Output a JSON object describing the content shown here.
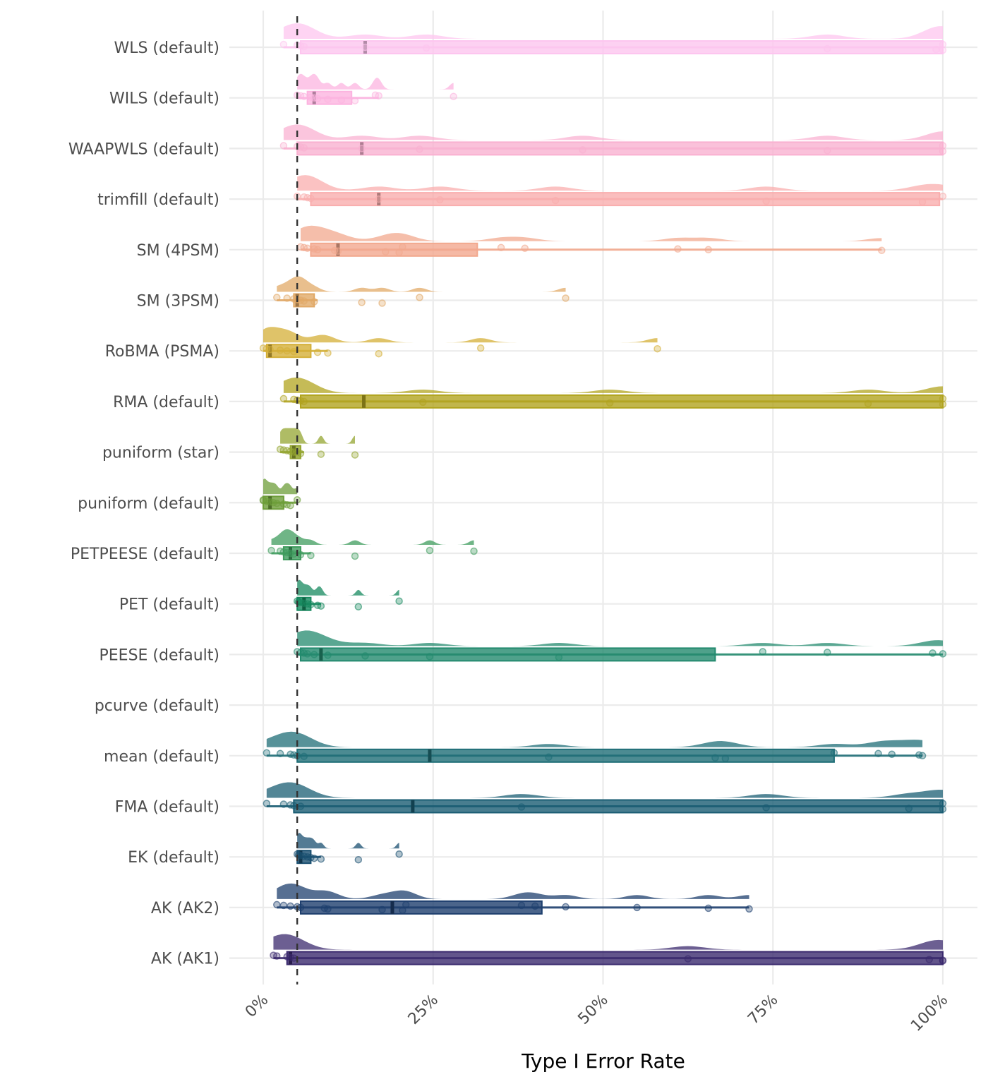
{
  "chart_data": {
    "type": "raincloud",
    "title": "",
    "xlabel": "Type I Error Rate",
    "ylabel": "",
    "xlim": [
      0,
      1
    ],
    "x_ticks": [
      0,
      0.25,
      0.5,
      0.75,
      1
    ],
    "x_tick_labels": [
      "0%",
      "25%",
      "50%",
      "75%",
      "100%"
    ],
    "x_tick_rotation_deg": 45,
    "reference_line": {
      "x": 0.05,
      "style": "dashed",
      "color": "#333333"
    },
    "grid": true,
    "legend": "none",
    "series": [
      {
        "name": "WLS (default)",
        "color": "#FDC5EF",
        "box": {
          "q1": 0.055,
          "median": 0.15,
          "q3": 1.0,
          "whisker_low": 0.03,
          "whisker_high": 1.0
        },
        "points": [
          0.03,
          0.05,
          0.055,
          0.06,
          0.15,
          0.24,
          0.83,
          0.99,
          1.0,
          1.0
        ]
      },
      {
        "name": "WILS (default)",
        "color": "#FCB4E0",
        "box": {
          "q1": 0.065,
          "median": 0.075,
          "q3": 0.13,
          "whisker_low": 0.05,
          "whisker_high": 0.17
        },
        "points": [
          0.05,
          0.055,
          0.06,
          0.07,
          0.075,
          0.08,
          0.095,
          0.115,
          0.135,
          0.165,
          0.17,
          0.28
        ]
      },
      {
        "name": "WAAPWLS (default)",
        "color": "#F9B1D1",
        "box": {
          "q1": 0.05,
          "median": 0.145,
          "q3": 1.0,
          "whisker_low": 0.03,
          "whisker_high": 1.0
        },
        "points": [
          0.03,
          0.05,
          0.055,
          0.06,
          0.145,
          0.23,
          0.47,
          0.83,
          1.0,
          1.0
        ]
      },
      {
        "name": "trimfill (default)",
        "color": "#F9AEAE",
        "box": {
          "q1": 0.07,
          "median": 0.17,
          "q3": 0.995,
          "whisker_low": 0.05,
          "whisker_high": 1.0
        },
        "points": [
          0.05,
          0.06,
          0.065,
          0.07,
          0.17,
          0.26,
          0.43,
          0.74,
          0.97,
          1.0
        ]
      },
      {
        "name": "SM (4PSM)",
        "color": "#F2A88E",
        "box": {
          "q1": 0.07,
          "median": 0.11,
          "q3": 0.315,
          "whisker_low": 0.055,
          "whisker_high": 0.91
        },
        "points": [
          0.055,
          0.06,
          0.065,
          0.075,
          0.08,
          0.105,
          0.11,
          0.18,
          0.2,
          0.205,
          0.35,
          0.385,
          0.61,
          0.655,
          0.91
        ]
      },
      {
        "name": "SM (3PSM)",
        "color": "#E1A967",
        "box": {
          "q1": 0.045,
          "median": 0.05,
          "q3": 0.075,
          "whisker_low": 0.02,
          "whisker_high": 0.08
        },
        "points": [
          0.02,
          0.035,
          0.045,
          0.05,
          0.055,
          0.06,
          0.075,
          0.145,
          0.175,
          0.23,
          0.445
        ]
      },
      {
        "name": "RoBMA (PSMA)",
        "color": "#D4AF37",
        "box": {
          "q1": 0.005,
          "median": 0.01,
          "q3": 0.07,
          "whisker_low": 0.0,
          "whisker_high": 0.095
        },
        "points": [
          0.0,
          0.005,
          0.01,
          0.025,
          0.035,
          0.045,
          0.08,
          0.095,
          0.17,
          0.32,
          0.58
        ]
      },
      {
        "name": "RMA (default)",
        "color": "#B1A41F",
        "box": {
          "q1": 0.055,
          "median": 0.148,
          "q3": 1.0,
          "whisker_low": 0.03,
          "whisker_high": 1.0
        },
        "points": [
          0.03,
          0.045,
          0.05,
          0.055,
          0.06,
          0.235,
          0.51,
          0.89,
          1.0,
          1.0
        ]
      },
      {
        "name": "puniform (star)",
        "color": "#94A531",
        "box": {
          "q1": 0.04,
          "median": 0.045,
          "q3": 0.055,
          "whisker_low": 0.025,
          "whisker_high": 0.06
        },
        "points": [
          0.025,
          0.03,
          0.035,
          0.04,
          0.045,
          0.05,
          0.055,
          0.085,
          0.135
        ]
      },
      {
        "name": "puniform (default)",
        "color": "#6E9E3A",
        "box": {
          "q1": 0.0,
          "median": 0.01,
          "q3": 0.03,
          "whisker_low": 0.0,
          "whisker_high": 0.05
        },
        "points": [
          0.0,
          0.0,
          0.005,
          0.01,
          0.015,
          0.02,
          0.03,
          0.035,
          0.04,
          0.05
        ]
      },
      {
        "name": "PETPEESE (default)",
        "color": "#3F9C5E",
        "box": {
          "q1": 0.03,
          "median": 0.04,
          "q3": 0.055,
          "whisker_low": 0.012,
          "whisker_high": 0.07
        },
        "points": [
          0.012,
          0.025,
          0.03,
          0.035,
          0.04,
          0.045,
          0.055,
          0.07,
          0.135,
          0.245,
          0.31
        ]
      },
      {
        "name": "PET (default)",
        "color": "#17895F",
        "box": {
          "q1": 0.05,
          "median": 0.06,
          "q3": 0.07,
          "whisker_low": 0.05,
          "whisker_high": 0.085
        },
        "points": [
          0.05,
          0.052,
          0.055,
          0.06,
          0.065,
          0.07,
          0.08,
          0.085,
          0.14,
          0.2
        ]
      },
      {
        "name": "PEESE (default)",
        "color": "#238A6E",
        "box": {
          "q1": 0.055,
          "median": 0.085,
          "q3": 0.665,
          "whisker_low": 0.05,
          "whisker_high": 1.0
        },
        "points": [
          0.05,
          0.055,
          0.06,
          0.065,
          0.075,
          0.095,
          0.15,
          0.245,
          0.435,
          0.735,
          0.83,
          0.985,
          1.0
        ]
      },
      {
        "name": "pcurve (default)",
        "color": "#1D7A74",
        "box": null,
        "points": []
      },
      {
        "name": "mean (default)",
        "color": "#1F6E77",
        "box": {
          "q1": 0.05,
          "median": 0.245,
          "q3": 0.84,
          "whisker_low": 0.005,
          "whisker_high": 0.97
        },
        "points": [
          0.005,
          0.025,
          0.04,
          0.045,
          0.05,
          0.06,
          0.42,
          0.665,
          0.68,
          0.84,
          0.905,
          0.925,
          0.965,
          0.97
        ]
      },
      {
        "name": "FMA (default)",
        "color": "#1A5D73",
        "box": {
          "q1": 0.045,
          "median": 0.22,
          "q3": 1.0,
          "whisker_low": 0.005,
          "whisker_high": 1.0
        },
        "points": [
          0.005,
          0.03,
          0.04,
          0.045,
          0.055,
          0.38,
          0.74,
          0.95,
          1.0,
          1.0
        ]
      },
      {
        "name": "EK (default)",
        "color": "#194F70",
        "box": {
          "q1": 0.05,
          "median": 0.055,
          "q3": 0.07,
          "whisker_low": 0.05,
          "whisker_high": 0.085
        },
        "points": [
          0.05,
          0.052,
          0.055,
          0.06,
          0.065,
          0.07,
          0.075,
          0.085,
          0.14,
          0.2
        ]
      },
      {
        "name": "AK (AK2)",
        "color": "#1E3F6E",
        "box": {
          "q1": 0.055,
          "median": 0.19,
          "q3": 0.41,
          "whisker_low": 0.02,
          "whisker_high": 0.715
        },
        "points": [
          0.02,
          0.03,
          0.04,
          0.05,
          0.055,
          0.09,
          0.095,
          0.175,
          0.205,
          0.21,
          0.38,
          0.4,
          0.445,
          0.55,
          0.655,
          0.715
        ]
      },
      {
        "name": "AK (AK1)",
        "color": "#3B2A6E",
        "box": {
          "q1": 0.035,
          "median": 0.04,
          "q3": 1.0,
          "whisker_low": 0.015,
          "whisker_high": 1.0
        },
        "points": [
          0.015,
          0.02,
          0.035,
          0.04,
          0.045,
          0.625,
          0.98,
          1.0,
          1.0
        ]
      }
    ]
  }
}
